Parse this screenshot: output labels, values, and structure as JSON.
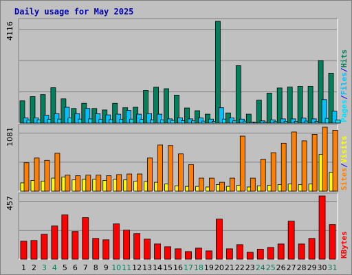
{
  "title": "Daily usage for May 2025",
  "colors": {
    "hits": "#00805c",
    "files": "#00c0ff",
    "pages": "#00e0ff",
    "visits": "#ffff00",
    "sites": "#ff8000",
    "kbytes": "#ff0000",
    "weekday_label": "#000000",
    "weekend_label": "#00805c",
    "separator": "#0000ff"
  },
  "chart_data": [
    {
      "type": "bar",
      "name": "hits-files-pages",
      "ymax_label": "4116",
      "ylim": [
        0,
        4116
      ],
      "side_labels": [
        "Pages",
        "Files",
        "Hits"
      ],
      "categories": [
        "1",
        "2",
        "3",
        "4",
        "5",
        "6",
        "7",
        "8",
        "9",
        "10",
        "11",
        "12",
        "13",
        "14",
        "15",
        "16",
        "17",
        "18",
        "19",
        "20",
        "21",
        "22",
        "23",
        "24",
        "25",
        "26",
        "27",
        "28",
        "29",
        "30",
        "31"
      ],
      "series": [
        {
          "name": "Hits",
          "color_key": "hits",
          "values": [
            900,
            1070,
            1150,
            1430,
            980,
            590,
            800,
            590,
            530,
            800,
            620,
            640,
            1320,
            1450,
            1390,
            1130,
            610,
            500,
            360,
            4116,
            410,
            2320,
            360,
            930,
            1210,
            1420,
            1460,
            1490,
            1490,
            2530,
            2020
          ]
        },
        {
          "name": "Files",
          "color_key": "files",
          "values": [
            210,
            210,
            320,
            380,
            640,
            380,
            590,
            380,
            330,
            360,
            510,
            360,
            380,
            360,
            170,
            210,
            170,
            210,
            160,
            620,
            210,
            160,
            40,
            90,
            130,
            170,
            170,
            200,
            170,
            950,
            480
          ]
        },
        {
          "name": "Pages",
          "color_key": "pages",
          "values": [
            120,
            130,
            150,
            160,
            210,
            160,
            170,
            150,
            140,
            150,
            160,
            150,
            130,
            130,
            110,
            100,
            90,
            80,
            70,
            160,
            90,
            80,
            30,
            40,
            60,
            70,
            70,
            80,
            70,
            190,
            120
          ]
        }
      ]
    },
    {
      "type": "bar",
      "name": "visits-sites",
      "ymax_label": "1081",
      "ylim": [
        0,
        1081
      ],
      "side_labels": [
        "Sites",
        "Visits"
      ],
      "categories": [
        "1",
        "2",
        "3",
        "4",
        "5",
        "6",
        "7",
        "8",
        "9",
        "10",
        "11",
        "12",
        "13",
        "14",
        "15",
        "16",
        "17",
        "18",
        "19",
        "20",
        "21",
        "22",
        "23",
        "24",
        "25",
        "26",
        "27",
        "28",
        "29",
        "30",
        "31"
      ],
      "series": [
        {
          "name": "Visits",
          "color_key": "visits",
          "values": [
            140,
            180,
            170,
            220,
            240,
            190,
            200,
            200,
            180,
            200,
            190,
            170,
            160,
            150,
            120,
            90,
            80,
            80,
            70,
            110,
            80,
            100,
            70,
            90,
            100,
            110,
            120,
            110,
            120,
            620,
            320
          ]
        },
        {
          "name": "Sites",
          "color_key": "sites",
          "values": [
            480,
            560,
            520,
            640,
            270,
            260,
            270,
            270,
            260,
            280,
            290,
            290,
            560,
            780,
            770,
            630,
            450,
            220,
            220,
            150,
            220,
            930,
            220,
            540,
            650,
            810,
            1000,
            850,
            960,
            1081,
            1030
          ]
        }
      ]
    },
    {
      "type": "bar",
      "name": "kbytes",
      "ymax_label": "457",
      "ylim": [
        0,
        457
      ],
      "side_labels": [
        "KBytes"
      ],
      "categories": [
        "1",
        "2",
        "3",
        "4",
        "5",
        "6",
        "7",
        "8",
        "9",
        "10",
        "11",
        "12",
        "13",
        "14",
        "15",
        "16",
        "17",
        "18",
        "19",
        "20",
        "21",
        "22",
        "23",
        "24",
        "25",
        "26",
        "27",
        "28",
        "29",
        "30",
        "31"
      ],
      "series": [
        {
          "name": "KBytes",
          "color_key": "kbytes",
          "values": [
            130,
            135,
            180,
            240,
            320,
            200,
            300,
            150,
            140,
            255,
            210,
            185,
            145,
            110,
            90,
            75,
            55,
            80,
            60,
            290,
            75,
            105,
            50,
            72,
            85,
            110,
            275,
            110,
            150,
            457,
            250
          ]
        }
      ]
    }
  ],
  "day_labels": [
    {
      "text": "1",
      "weekend": false
    },
    {
      "text": "2",
      "weekend": false
    },
    {
      "text": "3",
      "weekend": true
    },
    {
      "text": "4",
      "weekend": true
    },
    {
      "text": "5",
      "weekend": false
    },
    {
      "text": "6",
      "weekend": false
    },
    {
      "text": "7",
      "weekend": false
    },
    {
      "text": "8",
      "weekend": false
    },
    {
      "text": "9",
      "weekend": false
    },
    {
      "text": "10",
      "weekend": true
    },
    {
      "text": "11",
      "weekend": true
    },
    {
      "text": "12",
      "weekend": false
    },
    {
      "text": "13",
      "weekend": false
    },
    {
      "text": "14",
      "weekend": false
    },
    {
      "text": "15",
      "weekend": false
    },
    {
      "text": "16",
      "weekend": false
    },
    {
      "text": "17",
      "weekend": true
    },
    {
      "text": "18",
      "weekend": true
    },
    {
      "text": "19",
      "weekend": false
    },
    {
      "text": "20",
      "weekend": false
    },
    {
      "text": "21",
      "weekend": false
    },
    {
      "text": "22",
      "weekend": false
    },
    {
      "text": "23",
      "weekend": false
    },
    {
      "text": "24",
      "weekend": true
    },
    {
      "text": "25",
      "weekend": true
    },
    {
      "text": "26",
      "weekend": false
    },
    {
      "text": "27",
      "weekend": false
    },
    {
      "text": "28",
      "weekend": false
    },
    {
      "text": "29",
      "weekend": false
    },
    {
      "text": "30",
      "weekend": false
    },
    {
      "text": "31",
      "weekend": true
    }
  ]
}
